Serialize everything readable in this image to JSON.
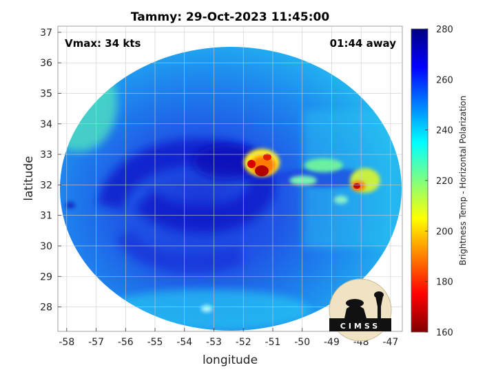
{
  "chart_data": {
    "type": "heatmap",
    "title": "Tammy: 29-Oct-2023 11:45:00",
    "xlabel": "longitude",
    "ylabel": "latitude",
    "xlim": [
      -58.3,
      -46.6
    ],
    "ylim": [
      27.2,
      37.2
    ],
    "xticks": [
      -58,
      -57,
      -56,
      -55,
      -54,
      -53,
      -52,
      -51,
      -50,
      -49,
      -48,
      -47
    ],
    "yticks": [
      28,
      29,
      30,
      31,
      32,
      33,
      34,
      35,
      36,
      37
    ],
    "grid": true,
    "annotations": {
      "left": "Vmax: 34 kts",
      "right": "01:44 away"
    },
    "colorbar": {
      "label": "Brightness Temp - Horizontal Polarization",
      "range": [
        160,
        280
      ],
      "ticks": [
        160,
        180,
        200,
        220,
        240,
        260,
        280
      ],
      "colormap": "jet"
    },
    "features": [
      {
        "lon": -51.4,
        "lat": 32.55,
        "value": 168
      },
      {
        "lon": -51.7,
        "lat": 32.7,
        "value": 182
      },
      {
        "lon": -51.1,
        "lat": 32.85,
        "value": 190
      },
      {
        "lon": -48.0,
        "lat": 31.95,
        "value": 184
      },
      {
        "lon": -49.1,
        "lat": 32.65,
        "value": 222
      },
      {
        "lon": -50.2,
        "lat": 32.4,
        "value": 228
      },
      {
        "lon": -52.5,
        "lat": 32.5,
        "value": 258
      },
      {
        "lon": -53.8,
        "lat": 31.2,
        "value": 262
      },
      {
        "lon": -57.5,
        "lat": 34.3,
        "value": 232
      },
      {
        "lon": -52.5,
        "lat": 27.9,
        "value": 238
      }
    ],
    "logo": "CIMSS"
  }
}
